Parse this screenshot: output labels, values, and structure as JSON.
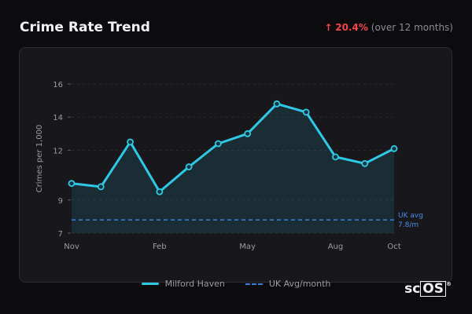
{
  "header": {
    "title": "Crime Rate Trend",
    "change_arrow": "↑",
    "change_pct": "20.4%",
    "change_period": "(over 12 months)"
  },
  "colors": {
    "series": "#2fc9e6",
    "avg": "#3a7fe0",
    "change": "#f0464c"
  },
  "chart_data": {
    "type": "line",
    "x": [
      "Nov",
      "Dec",
      "Jan",
      "Feb",
      "Mar",
      "Apr",
      "May",
      "Jun",
      "Jul",
      "Aug",
      "Sep",
      "Oct"
    ],
    "xticks": [
      "Nov",
      "Feb",
      "May",
      "Aug",
      "Oct"
    ],
    "yticks": [
      "7",
      "9",
      "12",
      "14",
      "16"
    ],
    "ylabel": "Crimes per 1,000",
    "ylim": [
      7,
      16
    ],
    "series": [
      {
        "name": "Milford Haven",
        "values": [
          10.0,
          9.8,
          12.5,
          9.5,
          11.0,
          12.4,
          13.0,
          14.8,
          14.3,
          11.6,
          11.2,
          12.1
        ]
      }
    ],
    "reference": {
      "name": "UK Avg/month",
      "value": 7.8,
      "label_line1": "UK avg",
      "label_line2": "7.8/m"
    },
    "grid": true,
    "legend": "bottom-center"
  },
  "legend": {
    "series_label": "Milford Haven",
    "avg_label": "UK Avg/month"
  },
  "watermark": "scOS"
}
